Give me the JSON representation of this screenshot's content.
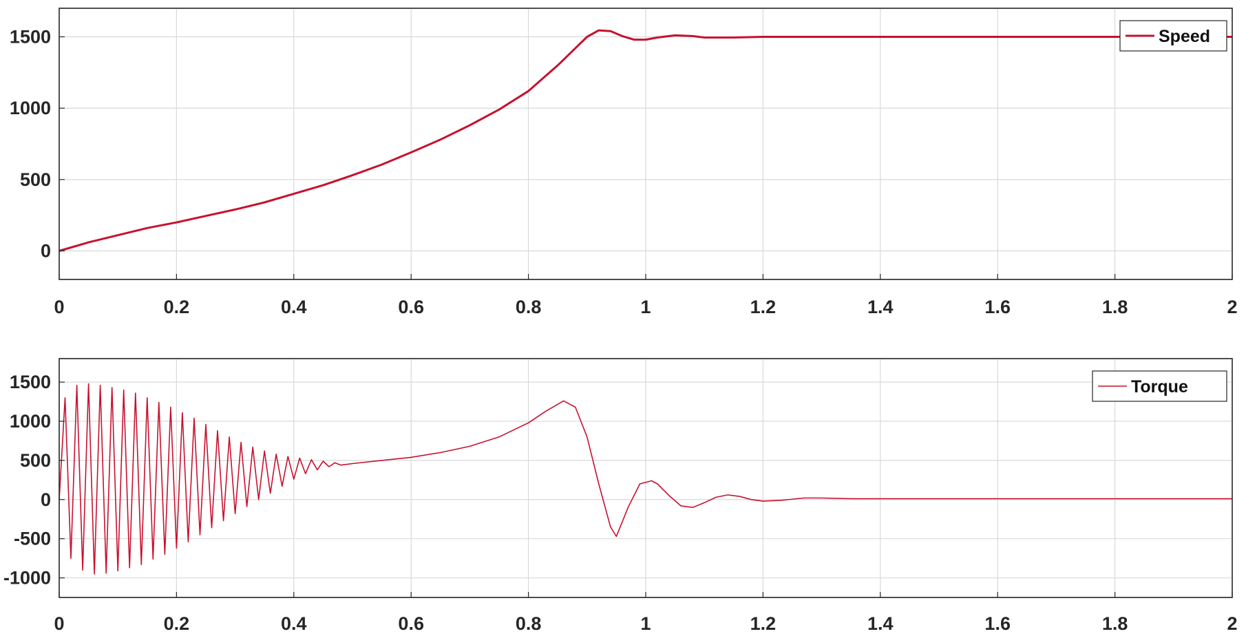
{
  "colors": {
    "series": "#c8102e",
    "grid": "#d9d9d9",
    "axes": "#262626",
    "background": "#ffffff"
  },
  "chart_data": [
    {
      "type": "line",
      "title": "",
      "xlabel": "",
      "ylabel": "",
      "xlim": [
        0,
        2
      ],
      "ylim": [
        -200,
        1700
      ],
      "x_ticks": [
        0,
        0.2,
        0.4,
        0.6,
        0.8,
        1,
        1.2,
        1.4,
        1.6,
        1.8,
        2
      ],
      "x_tick_labels": [
        "0",
        "0.2",
        "0.4",
        "0.6",
        "0.8",
        "1",
        "1.2",
        "1.4",
        "1.6",
        "1.8",
        "2"
      ],
      "y_ticks": [
        0,
        500,
        1000,
        1500
      ],
      "y_tick_labels": [
        "0",
        "500",
        "1000",
        "1500"
      ],
      "grid": true,
      "legend_position": "top-right",
      "series": [
        {
          "name": "Speed",
          "color": "#c8102e",
          "x": [
            0,
            0.05,
            0.1,
            0.15,
            0.2,
            0.25,
            0.3,
            0.35,
            0.4,
            0.45,
            0.5,
            0.55,
            0.6,
            0.65,
            0.7,
            0.75,
            0.8,
            0.85,
            0.88,
            0.9,
            0.92,
            0.94,
            0.96,
            0.98,
            1.0,
            1.02,
            1.05,
            1.08,
            1.1,
            1.15,
            1.2,
            1.3,
            1.4,
            1.6,
            1.8,
            2.0
          ],
          "y": [
            0,
            60,
            110,
            160,
            200,
            245,
            290,
            340,
            400,
            460,
            530,
            605,
            690,
            780,
            880,
            990,
            1120,
            1300,
            1420,
            1500,
            1545,
            1540,
            1505,
            1480,
            1480,
            1495,
            1510,
            1505,
            1495,
            1495,
            1500,
            1500,
            1500,
            1500,
            1500,
            1500
          ]
        }
      ]
    },
    {
      "type": "line",
      "title": "",
      "xlabel": "",
      "ylabel": "",
      "xlim": [
        0,
        2
      ],
      "ylim": [
        -1250,
        1800
      ],
      "x_ticks": [
        0,
        0.2,
        0.4,
        0.6,
        0.8,
        1,
        1.2,
        1.4,
        1.6,
        1.8,
        2
      ],
      "x_tick_labels": [
        "0",
        "0.2",
        "0.4",
        "0.6",
        "0.8",
        "1",
        "1.2",
        "1.4",
        "1.6",
        "1.8",
        "2"
      ],
      "y_ticks": [
        -1000,
        -500,
        0,
        500,
        1000,
        1500
      ],
      "y_tick_labels": [
        "-1000",
        "-500",
        "0",
        "500",
        "1000",
        "1500"
      ],
      "grid": true,
      "legend_position": "top-right",
      "series": [
        {
          "name": "Torque",
          "color": "#c8102e",
          "x": [
            0,
            0.01,
            0.02,
            0.03,
            0.04,
            0.05,
            0.06,
            0.07,
            0.08,
            0.09,
            0.1,
            0.11,
            0.12,
            0.13,
            0.14,
            0.15,
            0.16,
            0.17,
            0.18,
            0.19,
            0.2,
            0.21,
            0.22,
            0.23,
            0.24,
            0.25,
            0.26,
            0.27,
            0.28,
            0.29,
            0.3,
            0.31,
            0.32,
            0.33,
            0.34,
            0.35,
            0.36,
            0.37,
            0.38,
            0.39,
            0.4,
            0.41,
            0.42,
            0.43,
            0.44,
            0.45,
            0.46,
            0.47,
            0.48,
            0.5,
            0.55,
            0.6,
            0.65,
            0.7,
            0.75,
            0.8,
            0.83,
            0.86,
            0.88,
            0.9,
            0.92,
            0.94,
            0.95,
            0.97,
            0.99,
            1.01,
            1.02,
            1.04,
            1.06,
            1.08,
            1.1,
            1.12,
            1.14,
            1.16,
            1.18,
            1.2,
            1.23,
            1.27,
            1.3,
            1.35,
            1.4,
            1.6,
            1.8,
            2.0
          ],
          "y": [
            0,
            1300,
            -750,
            1460,
            -900,
            1480,
            -950,
            1460,
            -940,
            1430,
            -910,
            1400,
            -870,
            1360,
            -830,
            1300,
            -760,
            1240,
            -700,
            1180,
            -620,
            1110,
            -540,
            1040,
            -450,
            960,
            -360,
            880,
            -270,
            800,
            -180,
            730,
            -90,
            670,
            0,
            620,
            80,
            580,
            170,
            550,
            260,
            530,
            330,
            510,
            380,
            490,
            420,
            470,
            440,
            460,
            500,
            540,
            600,
            680,
            800,
            980,
            1130,
            1260,
            1180,
            800,
            200,
            -350,
            -470,
            -100,
            200,
            240,
            200,
            50,
            -80,
            -100,
            -40,
            30,
            60,
            40,
            0,
            -20,
            -10,
            20,
            20,
            10,
            10,
            10,
            10,
            10
          ]
        }
      ]
    }
  ]
}
